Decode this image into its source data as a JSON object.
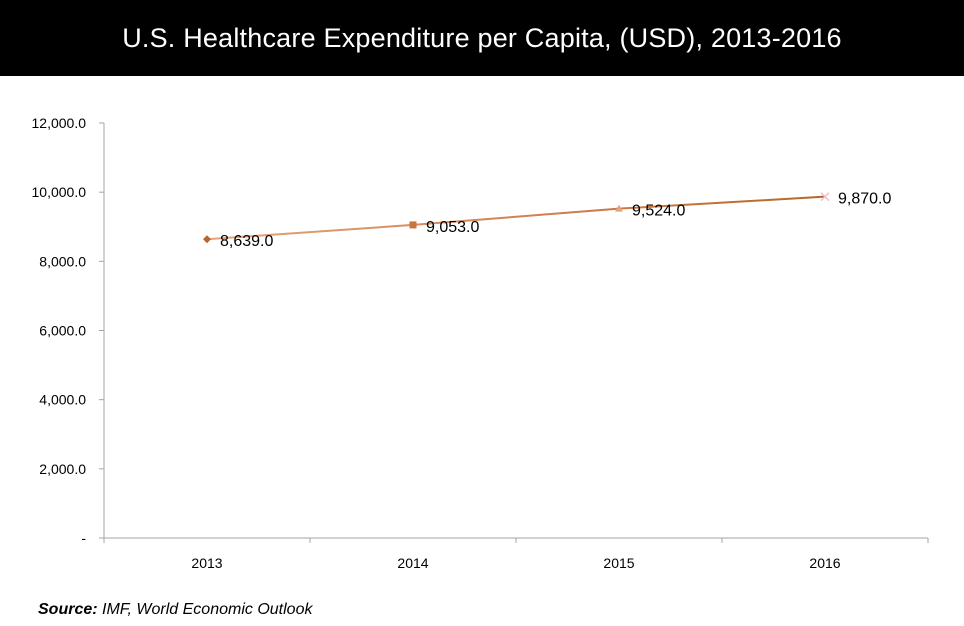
{
  "header": {
    "title": "U.S. Healthcare Expenditure per Capita, (USD), 2013-2016"
  },
  "footer": {
    "source_label": "Source:",
    "source_text": " IMF, World Economic Outlook"
  },
  "colors": {
    "title_background": "#000000",
    "title_text": "#ffffff",
    "line_start": "#E8A27C",
    "line_end": "#B8652A",
    "axis": "#A6A6A6"
  },
  "chart_data": {
    "type": "line",
    "title": "U.S. Healthcare Expenditure per Capita, (USD), 2013-2016",
    "xlabel": "",
    "ylabel": "",
    "categories": [
      "2013",
      "2014",
      "2015",
      "2016"
    ],
    "series": [
      {
        "values": [
          8639.0,
          9053.0,
          9524.0,
          9870.0
        ],
        "data_labels": [
          "8,639.0",
          "9,053.0",
          "9,524.0",
          "9,870.0"
        ],
        "markers": [
          "diamond",
          "square",
          "triangle",
          "x"
        ],
        "marker_colors": [
          "#B8652A",
          "#C9743A",
          "#E8A27C",
          "#F2C2C2"
        ]
      }
    ],
    "ylim": [
      0,
      12000
    ],
    "yticks": [
      0,
      2000,
      4000,
      6000,
      8000,
      10000,
      12000
    ],
    "ytick_labels": [
      "-",
      "2,000.0",
      "4,000.0",
      "6,000.0",
      "8,000.0",
      "10,000.0",
      "12,000.0"
    ],
    "grid": false,
    "legend": "none"
  }
}
